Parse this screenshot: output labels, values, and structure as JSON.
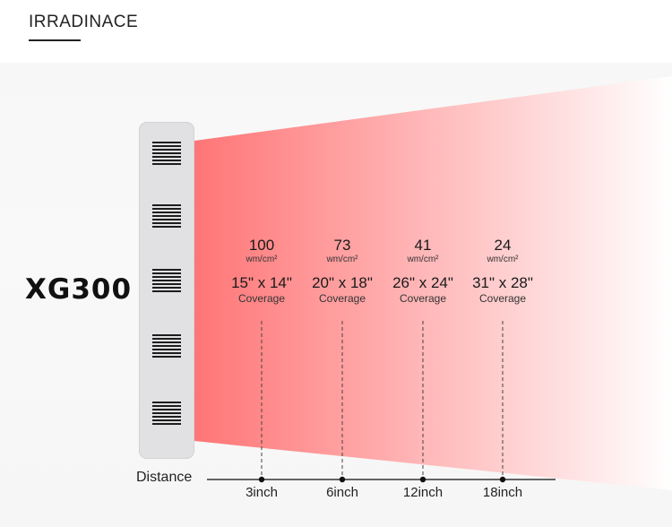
{
  "header": {
    "title": "IRRADINACE"
  },
  "product": {
    "name": "XG300"
  },
  "colors": {
    "beam_start": "#ff7576",
    "beam_end": "#ffffff",
    "device": "#e1e1e3",
    "vents": "#1d1d1d"
  },
  "axis": {
    "label": "Distance"
  },
  "measurements": [
    {
      "distance": "3inch",
      "irradiance": "100",
      "unit": "wm/cm²",
      "coverage": "15\" x 14\"",
      "coverage_label": "Coverage"
    },
    {
      "distance": "6inch",
      "irradiance": "73",
      "unit": "wm/cm²",
      "coverage": "20\" x 18\"",
      "coverage_label": "Coverage"
    },
    {
      "distance": "12inch",
      "irradiance": "41",
      "unit": "wm/cm²",
      "coverage": "26\" x 24\"",
      "coverage_label": "Coverage"
    },
    {
      "distance": "18inch",
      "irradiance": "24",
      "unit": "wm/cm²",
      "coverage": "31\" x 28\"",
      "coverage_label": "Coverage"
    }
  ]
}
